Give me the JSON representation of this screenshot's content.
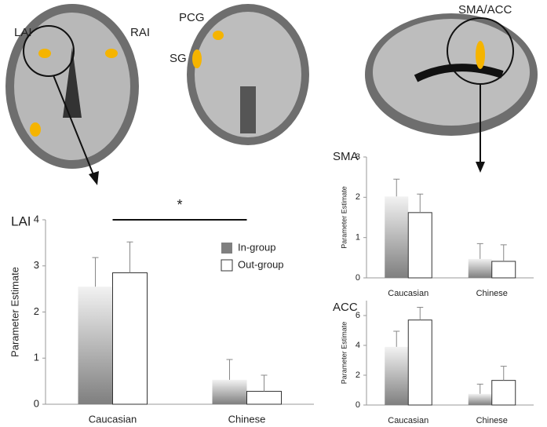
{
  "brain_labels": [
    "LAI",
    "RAI",
    "PCG",
    "SG",
    "SMA/ACC"
  ],
  "chart_data": [
    {
      "type": "bar",
      "title": "LAI",
      "y_label": "Parameter Estimate",
      "categories": [
        "Caucasian",
        "Chinese"
      ],
      "series": [
        {
          "name": "In-group",
          "color": "#7f7f7f",
          "values": [
            2.55,
            0.53
          ],
          "errors": [
            0.63,
            0.44
          ]
        },
        {
          "name": "Out-group",
          "color": "#ffffff",
          "values": [
            2.85,
            0.28
          ],
          "errors": [
            0.67,
            0.35
          ]
        }
      ],
      "ylim": [
        0,
        4
      ],
      "yticks": [
        0,
        1,
        2,
        3,
        4
      ],
      "legend": "center-right",
      "significance": "*"
    },
    {
      "type": "bar",
      "title": "SMA",
      "y_label": "Parameter Estimate",
      "categories": [
        "Caucasian",
        "Chinese"
      ],
      "series": [
        {
          "name": "In-group",
          "color": "#7f7f7f",
          "values": [
            2.02,
            0.47
          ],
          "errors": [
            0.43,
            0.38
          ]
        },
        {
          "name": "Out-group",
          "color": "#ffffff",
          "values": [
            1.62,
            0.41
          ],
          "errors": [
            0.46,
            0.41
          ]
        }
      ],
      "ylim": [
        0,
        3
      ],
      "yticks": [
        0,
        1,
        2,
        3
      ]
    },
    {
      "type": "bar",
      "title": "ACC",
      "y_label": "Parameter Estimate",
      "categories": [
        "Caucasian",
        "Chinese"
      ],
      "series": [
        {
          "name": "In-group",
          "color": "#7f7f7f",
          "values": [
            3.9,
            0.75
          ],
          "errors": [
            1.05,
            0.65
          ]
        },
        {
          "name": "Out-group",
          "color": "#ffffff",
          "values": [
            5.7,
            1.65
          ],
          "errors": [
            0.85,
            0.95
          ]
        }
      ],
      "ylim": [
        0,
        7
      ],
      "yticks": [
        0,
        2,
        4,
        6
      ]
    }
  ]
}
